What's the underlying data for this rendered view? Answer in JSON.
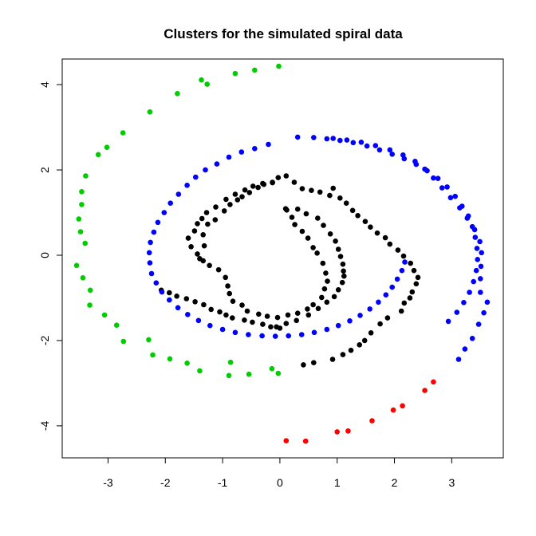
{
  "chart_data": {
    "type": "scatter",
    "title": "Clusters for the simulated spiral data",
    "xlabel": "",
    "ylabel": "",
    "xlim": [
      -3.8,
      3.9
    ],
    "ylim": [
      -4.75,
      4.6
    ],
    "x_ticks": [
      -3,
      -2,
      -1,
      0,
      1,
      2,
      3
    ],
    "x_tick_labels": [
      "-3",
      "-2",
      "-1",
      "0",
      "1",
      "2",
      "3"
    ],
    "y_ticks": [
      -4,
      -2,
      0,
      2,
      4
    ],
    "y_tick_labels": [
      "-4",
      "-2",
      "0",
      "2",
      "4"
    ],
    "grid": false,
    "legend": "none",
    "series": [
      {
        "color": "#000000",
        "points": [
          [
            0.25,
            1.71
          ],
          [
            0.39,
            1.56
          ],
          [
            0.55,
            1.52
          ],
          [
            0.7,
            1.48
          ],
          [
            0.87,
            1.4
          ],
          [
            0.93,
            1.57
          ],
          [
            1.05,
            1.34
          ],
          [
            1.16,
            1.22
          ],
          [
            1.27,
            1.05
          ],
          [
            1.36,
            0.93
          ],
          [
            1.49,
            0.79
          ],
          [
            1.58,
            0.66
          ],
          [
            1.7,
            0.52
          ],
          [
            1.84,
            0.41
          ],
          [
            1.92,
            0.26
          ],
          [
            2.06,
            0.12
          ],
          [
            2.16,
            -0.02
          ],
          [
            2.28,
            -0.19
          ],
          [
            2.34,
            -0.36
          ],
          [
            2.41,
            -0.52
          ],
          [
            2.38,
            -0.67
          ],
          [
            2.31,
            -0.86
          ],
          [
            2.27,
            -1.0
          ],
          [
            2.17,
            -1.12
          ],
          [
            2.12,
            -1.31
          ],
          [
            1.88,
            -1.47
          ],
          [
            1.75,
            -1.61
          ],
          [
            1.59,
            -1.82
          ],
          [
            1.48,
            -2.0
          ],
          [
            1.39,
            -2.1
          ],
          [
            1.24,
            -2.23
          ],
          [
            1.1,
            -2.33
          ],
          [
            0.92,
            -2.44
          ],
          [
            0.59,
            -2.52
          ],
          [
            0.41,
            -2.57
          ],
          [
            0.0,
            -1.71
          ],
          [
            -0.16,
            -1.68
          ],
          [
            -0.3,
            -1.62
          ],
          [
            -0.48,
            -1.57
          ],
          [
            -0.62,
            -1.52
          ],
          [
            -0.83,
            -1.47
          ],
          [
            -0.94,
            -1.4
          ],
          [
            -1.05,
            -1.33
          ],
          [
            -1.2,
            -1.27
          ],
          [
            -1.33,
            -1.16
          ],
          [
            -1.48,
            -1.09
          ],
          [
            -1.63,
            -1.02
          ],
          [
            -1.8,
            -0.96
          ],
          [
            -1.93,
            -0.88
          ],
          [
            -2.07,
            -0.82
          ],
          [
            -1.4,
            -0.08
          ],
          [
            -1.32,
            0.22
          ],
          [
            -1.34,
            0.48
          ],
          [
            -1.26,
            0.73
          ],
          [
            -1.13,
            0.83
          ],
          [
            -0.97,
            1.04
          ],
          [
            -0.87,
            1.19
          ],
          [
            -0.74,
            1.3
          ],
          [
            -0.66,
            1.37
          ],
          [
            -0.53,
            1.47
          ],
          [
            -0.38,
            1.59
          ],
          [
            -0.28,
            1.66
          ],
          [
            -0.13,
            1.71
          ],
          [
            -0.03,
            1.82
          ],
          [
            0.11,
            1.86
          ],
          [
            0.12,
            1.06
          ],
          [
            0.21,
            0.89
          ],
          [
            0.26,
            0.72
          ],
          [
            0.39,
            0.56
          ],
          [
            0.49,
            0.4
          ],
          [
            0.58,
            0.18
          ],
          [
            0.65,
            0.05
          ],
          [
            0.75,
            -0.19
          ],
          [
            0.8,
            -0.42
          ],
          [
            0.83,
            -0.61
          ],
          [
            0.78,
            -0.79
          ],
          [
            0.73,
            -0.99
          ],
          [
            0.58,
            -1.16
          ],
          [
            0.48,
            -1.26
          ],
          [
            0.31,
            -1.36
          ],
          [
            0.14,
            -1.4
          ],
          [
            -0.04,
            -1.46
          ],
          [
            -0.22,
            -1.43
          ],
          [
            -0.37,
            -1.38
          ],
          [
            -0.57,
            -1.31
          ],
          [
            -0.66,
            -1.17
          ],
          [
            -0.82,
            -1.08
          ],
          [
            -0.88,
            -0.9
          ],
          [
            -0.91,
            -0.72
          ],
          [
            -0.95,
            -0.52
          ],
          [
            -1.07,
            -0.34
          ],
          [
            -1.23,
            -0.24
          ],
          [
            -1.34,
            -0.13
          ],
          [
            -1.44,
            0.03
          ],
          [
            -1.55,
            0.2
          ],
          [
            -1.6,
            0.4
          ],
          [
            -1.49,
            0.57
          ],
          [
            -1.44,
            0.74
          ],
          [
            -1.36,
            0.86
          ],
          [
            -1.28,
            1.0
          ],
          [
            -1.12,
            1.13
          ],
          [
            -0.94,
            1.31
          ],
          [
            -0.78,
            1.43
          ],
          [
            -0.61,
            1.53
          ],
          [
            -0.47,
            1.62
          ],
          [
            -0.3,
            1.68
          ],
          [
            -0.13,
            1.7
          ],
          [
            0.1,
            1.09
          ],
          [
            0.31,
            1.08
          ],
          [
            0.46,
            0.97
          ],
          [
            0.66,
            0.87
          ],
          [
            0.76,
            0.7
          ],
          [
            0.88,
            0.5
          ],
          [
            0.97,
            0.33
          ],
          [
            1.02,
            0.14
          ],
          [
            1.06,
            -0.03
          ],
          [
            1.1,
            -0.21
          ],
          [
            1.11,
            -0.37
          ],
          [
            1.12,
            -0.49
          ],
          [
            1.09,
            -0.64
          ],
          [
            1.02,
            -0.81
          ],
          [
            0.95,
            -0.97
          ],
          [
            0.82,
            -1.1
          ],
          [
            0.67,
            -1.25
          ],
          [
            0.5,
            -1.4
          ],
          [
            0.29,
            -1.53
          ],
          [
            0.11,
            -1.6
          ],
          [
            -0.06,
            -1.68
          ]
        ]
      },
      {
        "color": "#0000ff",
        "points": [
          [
            0.31,
            2.77
          ],
          [
            0.59,
            2.76
          ],
          [
            0.82,
            2.73
          ],
          [
            1.05,
            2.69
          ],
          [
            1.28,
            2.64
          ],
          [
            1.52,
            2.56
          ],
          [
            1.74,
            2.47
          ],
          [
            1.96,
            2.37
          ],
          [
            2.17,
            2.26
          ],
          [
            2.38,
            2.13
          ],
          [
            2.57,
            1.98
          ],
          [
            2.76,
            1.8
          ],
          [
            2.92,
            1.6
          ],
          [
            3.06,
            1.38
          ],
          [
            3.18,
            1.15
          ],
          [
            3.29,
            0.92
          ],
          [
            3.36,
            0.67
          ],
          [
            3.41,
            0.42
          ],
          [
            3.44,
            0.16
          ],
          [
            3.45,
            -0.1
          ],
          [
            3.43,
            -0.36
          ],
          [
            3.38,
            -0.62
          ],
          [
            3.31,
            -0.87
          ],
          [
            3.21,
            -1.11
          ],
          [
            3.09,
            -1.34
          ],
          [
            2.94,
            -1.55
          ],
          [
            3.12,
            -2.44
          ],
          [
            3.23,
            -2.2
          ],
          [
            3.36,
            -1.95
          ],
          [
            3.47,
            -1.62
          ],
          [
            3.56,
            -1.35
          ],
          [
            3.62,
            -1.1
          ],
          [
            3.5,
            -0.87
          ],
          [
            3.5,
            -0.55
          ],
          [
            3.51,
            -0.26
          ],
          [
            3.52,
            0.06
          ],
          [
            3.49,
            0.32
          ],
          [
            3.4,
            0.6
          ],
          [
            3.27,
            0.87
          ],
          [
            3.14,
            1.11
          ],
          [
            2.98,
            1.35
          ],
          [
            2.83,
            1.58
          ],
          [
            2.68,
            1.81
          ],
          [
            2.53,
            2.02
          ],
          [
            2.36,
            2.2
          ],
          [
            2.15,
            2.35
          ],
          [
            1.92,
            2.47
          ],
          [
            1.67,
            2.57
          ],
          [
            1.42,
            2.65
          ],
          [
            1.17,
            2.7
          ],
          [
            0.93,
            2.74
          ],
          [
            -0.2,
            2.6
          ],
          [
            -0.44,
            2.5
          ],
          [
            -0.67,
            2.42
          ],
          [
            -0.89,
            2.3
          ],
          [
            -1.1,
            2.14
          ],
          [
            -1.3,
            2.0
          ],
          [
            -1.47,
            1.83
          ],
          [
            -1.62,
            1.64
          ],
          [
            -1.77,
            1.43
          ],
          [
            -1.91,
            1.22
          ],
          [
            -2.02,
            1.0
          ],
          [
            -2.13,
            0.77
          ],
          [
            -2.2,
            0.54
          ],
          [
            -2.26,
            0.3
          ],
          [
            -2.28,
            0.06
          ],
          [
            -2.27,
            -0.18
          ],
          [
            -2.24,
            -0.43
          ],
          [
            -2.16,
            -0.65
          ],
          [
            -2.06,
            -0.86
          ],
          [
            -1.93,
            -1.05
          ],
          [
            -1.78,
            -1.23
          ],
          [
            -1.61,
            -1.39
          ],
          [
            -1.42,
            -1.53
          ],
          [
            -1.22,
            -1.65
          ],
          [
            -1.0,
            -1.74
          ],
          [
            -0.78,
            -1.81
          ],
          [
            -0.55,
            -1.86
          ],
          [
            -0.31,
            -1.89
          ],
          [
            -0.08,
            -1.9
          ],
          [
            0.15,
            -1.89
          ],
          [
            0.38,
            -1.86
          ],
          [
            0.6,
            -1.81
          ],
          [
            0.82,
            -1.74
          ],
          [
            1.02,
            -1.65
          ],
          [
            1.22,
            -1.54
          ],
          [
            1.4,
            -1.41
          ],
          [
            1.57,
            -1.26
          ],
          [
            1.72,
            -1.1
          ],
          [
            1.85,
            -0.93
          ],
          [
            1.96,
            -0.75
          ],
          [
            2.05,
            -0.56
          ],
          [
            2.13,
            -0.36
          ],
          [
            2.18,
            -0.16
          ]
        ]
      },
      {
        "color": "#00cd00",
        "points": [
          [
            -0.02,
            4.43
          ],
          [
            -0.44,
            4.34
          ],
          [
            -0.78,
            4.26
          ],
          [
            -1.27,
            4.01
          ],
          [
            -1.37,
            4.11
          ],
          [
            -1.79,
            3.79
          ],
          [
            -2.27,
            3.36
          ],
          [
            -2.74,
            2.87
          ],
          [
            -3.02,
            2.53
          ],
          [
            -3.17,
            2.36
          ],
          [
            -3.39,
            1.86
          ],
          [
            -3.46,
            1.49
          ],
          [
            -3.46,
            1.19
          ],
          [
            -3.51,
            0.85
          ],
          [
            -3.48,
            0.55
          ],
          [
            -3.4,
            0.28
          ],
          [
            -3.55,
            -0.24
          ],
          [
            -3.44,
            -0.53
          ],
          [
            -3.31,
            -0.82
          ],
          [
            -3.32,
            -1.17
          ],
          [
            -3.06,
            -1.4
          ],
          [
            -2.85,
            -1.64
          ],
          [
            -2.73,
            -2.02
          ],
          [
            -2.29,
            -1.98
          ],
          [
            -2.22,
            -2.34
          ],
          [
            -1.92,
            -2.43
          ],
          [
            -1.62,
            -2.53
          ],
          [
            -1.4,
            -2.71
          ],
          [
            -0.86,
            -2.51
          ],
          [
            -0.89,
            -2.82
          ],
          [
            -0.54,
            -2.79
          ],
          [
            -0.14,
            -2.66
          ],
          [
            -0.03,
            -2.77
          ]
        ]
      },
      {
        "color": "#ff0000",
        "points": [
          [
            0.11,
            -4.35
          ],
          [
            0.45,
            -4.36
          ],
          [
            1.0,
            -4.14
          ],
          [
            1.19,
            -4.12
          ],
          [
            1.61,
            -3.88
          ],
          [
            1.98,
            -3.63
          ],
          [
            2.14,
            -3.53
          ],
          [
            2.53,
            -3.17
          ],
          [
            2.68,
            -2.97
          ]
        ]
      }
    ]
  }
}
